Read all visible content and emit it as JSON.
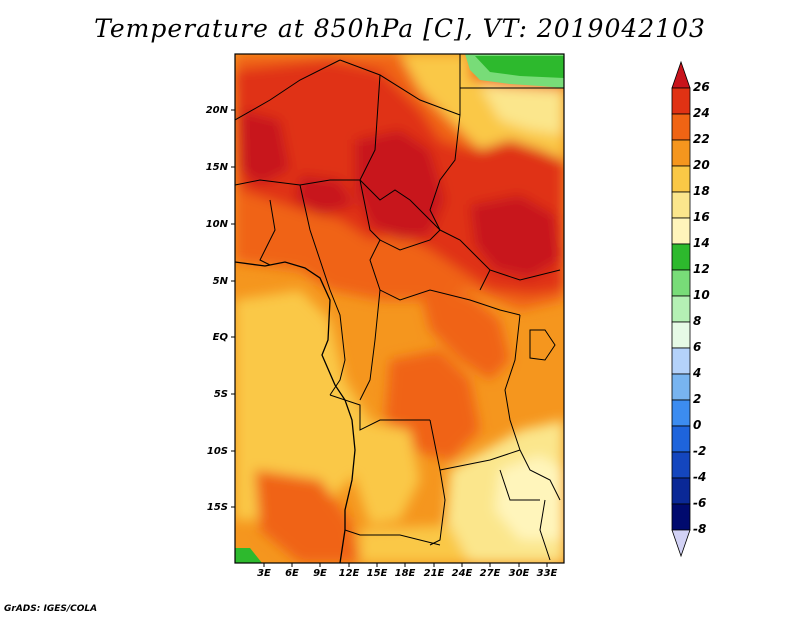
{
  "title": "Temperature at 850hPa [C], VT: 2019042103",
  "credit": "GrADS: IGES/COLA",
  "map": {
    "lat_labels": [
      "20N",
      "15N",
      "10N",
      "5N",
      "EQ",
      "5S",
      "10S",
      "15S"
    ],
    "lon_labels": [
      "3E",
      "6E",
      "9E",
      "12E",
      "15E",
      "18E",
      "21E",
      "24E",
      "27E",
      "30E",
      "33E"
    ]
  },
  "colorbar": {
    "labels": [
      "26",
      "24",
      "22",
      "20",
      "18",
      "16",
      "14",
      "12",
      "10",
      "8",
      "6",
      "4",
      "2",
      "0",
      "-2",
      "-4",
      "-6",
      "-8"
    ],
    "colors": [
      "#c8141c",
      "#e03214",
      "#f06414",
      "#f5961e",
      "#fac846",
      "#fbe68c",
      "#fff5bb",
      "#2db92d",
      "#78dc78",
      "#b4f0b4",
      "#e6fae6",
      "#b4d2fa",
      "#78b4f0",
      "#3c8cf0",
      "#1e64dc",
      "#1446be",
      "#0a2896",
      "#000a6e",
      "#d2d2f5"
    ]
  }
}
